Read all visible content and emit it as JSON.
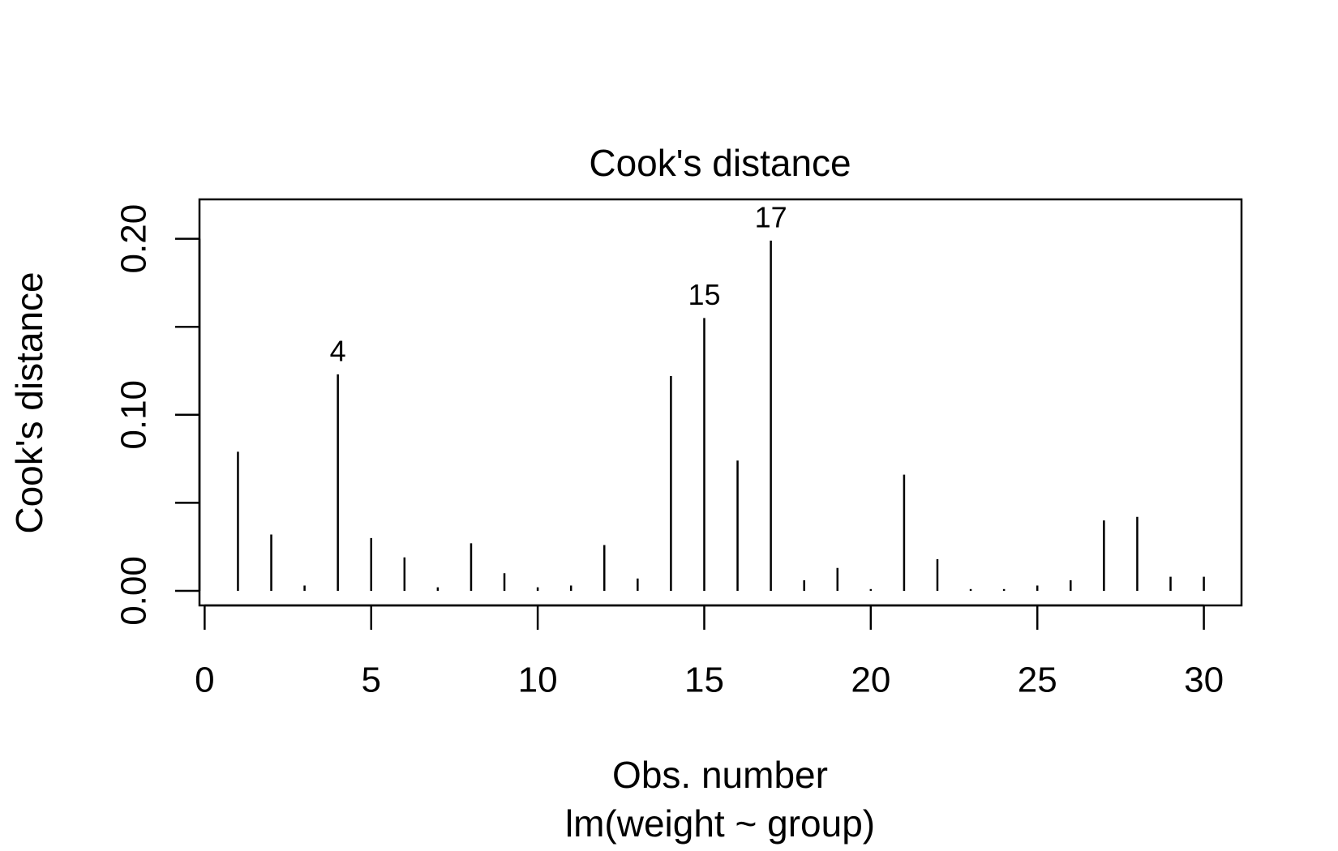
{
  "chart_data": {
    "type": "spike",
    "title": "Cook's distance",
    "xlabel": "Obs. number",
    "subtitle": "lm(weight ~ group)",
    "ylabel": "Cook's distance",
    "x": [
      1,
      2,
      3,
      4,
      5,
      6,
      7,
      8,
      9,
      10,
      11,
      12,
      13,
      14,
      15,
      16,
      17,
      18,
      19,
      20,
      21,
      22,
      23,
      24,
      25,
      26,
      27,
      28,
      29,
      30
    ],
    "values": [
      0.079,
      0.032,
      0.003,
      0.123,
      0.03,
      0.019,
      0.002,
      0.027,
      0.01,
      0.002,
      0.003,
      0.026,
      0.007,
      0.122,
      0.155,
      0.074,
      0.199,
      0.006,
      0.013,
      0.001,
      0.066,
      0.018,
      0.001,
      0.001,
      0.003,
      0.006,
      0.04,
      0.042,
      0.008,
      0.008
    ],
    "labeled_points": [
      4,
      15,
      17
    ],
    "color": "#000000",
    "xlim": [
      -0.155,
      31.13
    ],
    "xticks": [
      0,
      5,
      10,
      15,
      20,
      25,
      30
    ],
    "ylim": [
      -0.0083,
      0.2224
    ],
    "yticks": [
      {
        "value": 0,
        "label": "0.00"
      },
      {
        "value": 0.1,
        "label": "0.10"
      },
      {
        "value": 0.2,
        "label": "0.20"
      }
    ],
    "yminor_ticks": [
      0.05,
      0.15
    ],
    "grid": false
  }
}
